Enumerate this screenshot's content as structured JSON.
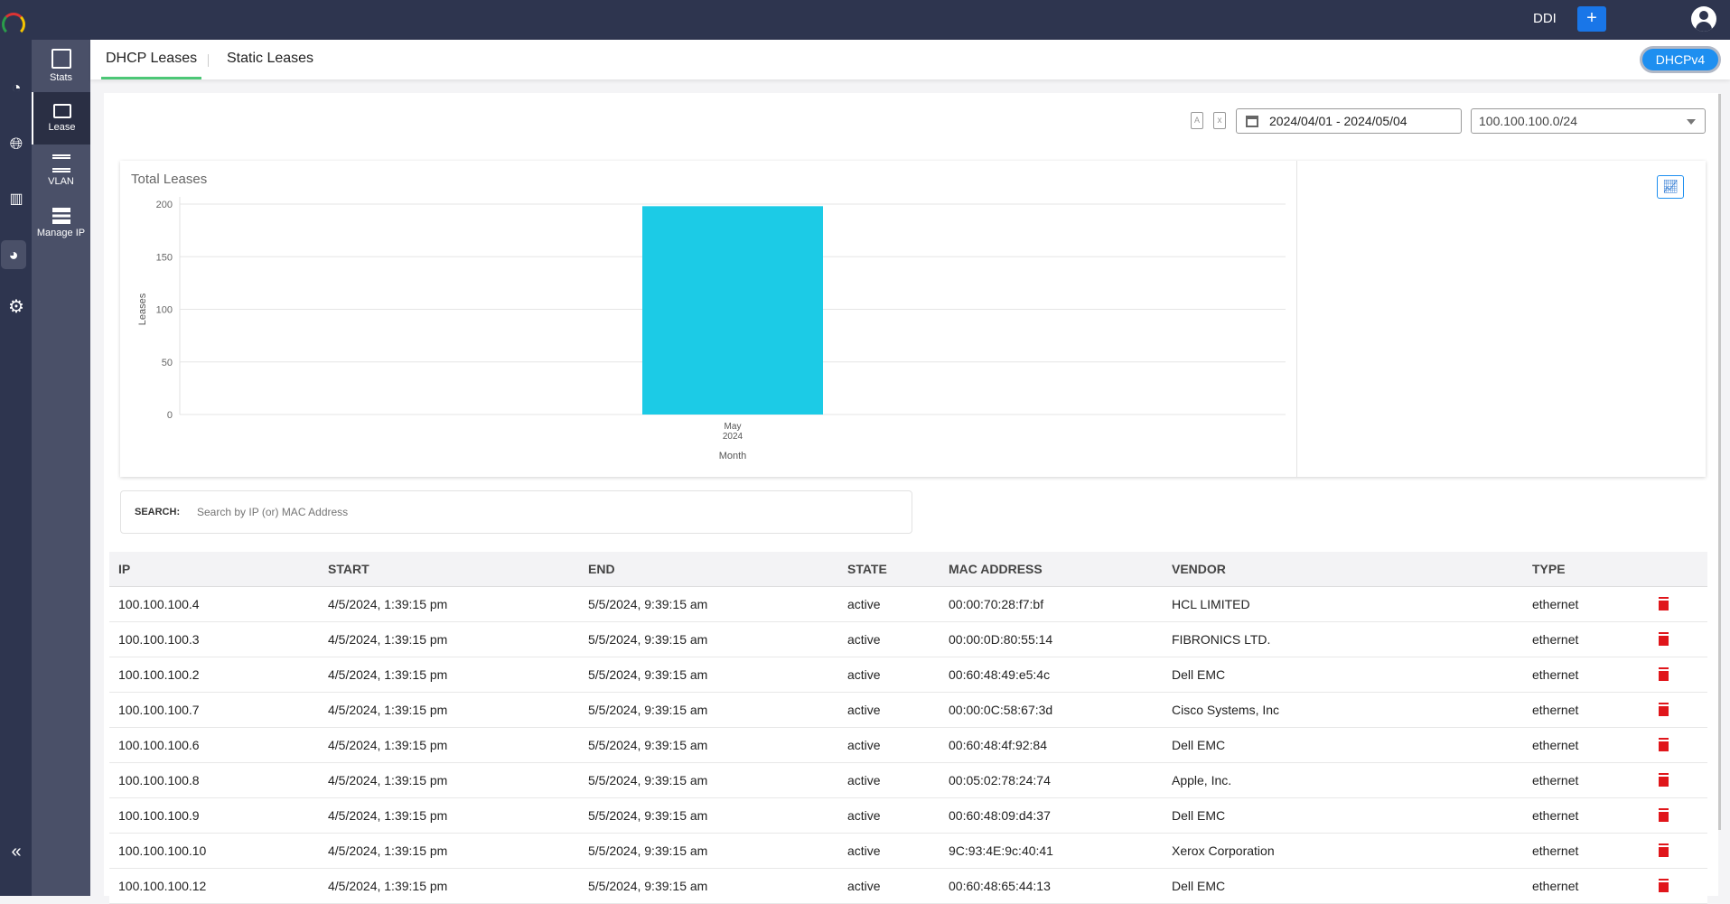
{
  "header": {
    "app": "DDI",
    "add_label": "+",
    "icons": [
      "logo",
      "plus-icon",
      "user-avatar-icon"
    ]
  },
  "rail": {
    "icons": [
      "dashboard-icon",
      "dns-icon",
      "network-icon",
      "stats-icon",
      "settings-icon"
    ],
    "collapse": "«"
  },
  "subnav": [
    {
      "label": "Stats",
      "icon": "stats-icon"
    },
    {
      "label": "Lease",
      "icon": "lease-icon",
      "active": true
    },
    {
      "label": "VLAN",
      "icon": "vlan-icon"
    },
    {
      "label": "Manage IP",
      "icon": "manage-ip-icon"
    }
  ],
  "tabs": [
    {
      "label": "DHCP Leases",
      "active": true
    },
    {
      "label": "Static Leases"
    }
  ],
  "version_toggle": "DHCPv4",
  "filters": {
    "date_range": "2024/04/01 - 2024/05/04",
    "subnet": "100.100.100.0/24"
  },
  "colors": {
    "accent": "#1976d2",
    "bar": "#1ccbe6",
    "tab_underline": "#4cc776",
    "delete": "#e0161b"
  },
  "chart_data": {
    "type": "bar",
    "title": "Total Leases",
    "xlabel": "Month",
    "ylabel": "Leases",
    "categories": [
      "May 2024"
    ],
    "category_lines": [
      [
        "May",
        "2024"
      ]
    ],
    "values": [
      198
    ],
    "ylim": [
      0,
      200
    ],
    "yticks": [
      0,
      50,
      100,
      150,
      200
    ],
    "grid": true
  },
  "search": {
    "label": "SEARCH:",
    "placeholder": "Search by IP (or) MAC Address"
  },
  "table": {
    "columns": [
      "IP",
      "START",
      "END",
      "STATE",
      "MAC ADDRESS",
      "VENDOR",
      "TYPE"
    ],
    "rows": [
      [
        "100.100.100.4",
        "4/5/2024, 1:39:15 pm",
        "5/5/2024, 9:39:15 am",
        "active",
        "00:00:70:28:f7:bf",
        "HCL LIMITED",
        "ethernet"
      ],
      [
        "100.100.100.3",
        "4/5/2024, 1:39:15 pm",
        "5/5/2024, 9:39:15 am",
        "active",
        "00:00:0D:80:55:14",
        "FIBRONICS LTD.",
        "ethernet"
      ],
      [
        "100.100.100.2",
        "4/5/2024, 1:39:15 pm",
        "5/5/2024, 9:39:15 am",
        "active",
        "00:60:48:49:e5:4c",
        "Dell EMC",
        "ethernet"
      ],
      [
        "100.100.100.7",
        "4/5/2024, 1:39:15 pm",
        "5/5/2024, 9:39:15 am",
        "active",
        "00:00:0C:58:67:3d",
        "Cisco Systems, Inc",
        "ethernet"
      ],
      [
        "100.100.100.6",
        "4/5/2024, 1:39:15 pm",
        "5/5/2024, 9:39:15 am",
        "active",
        "00:60:48:4f:92:84",
        "Dell EMC",
        "ethernet"
      ],
      [
        "100.100.100.8",
        "4/5/2024, 1:39:15 pm",
        "5/5/2024, 9:39:15 am",
        "active",
        "00:05:02:78:24:74",
        "Apple, Inc.",
        "ethernet"
      ],
      [
        "100.100.100.9",
        "4/5/2024, 1:39:15 pm",
        "5/5/2024, 9:39:15 am",
        "active",
        "00:60:48:09:d4:37",
        "Dell EMC",
        "ethernet"
      ],
      [
        "100.100.100.10",
        "4/5/2024, 1:39:15 pm",
        "5/5/2024, 9:39:15 am",
        "active",
        "9C:93:4E:9c:40:41",
        "Xerox Corporation",
        "ethernet"
      ],
      [
        "100.100.100.12",
        "4/5/2024, 1:39:15 pm",
        "5/5/2024, 9:39:15 am",
        "active",
        "00:60:48:65:44:13",
        "Dell EMC",
        "ethernet"
      ]
    ]
  }
}
